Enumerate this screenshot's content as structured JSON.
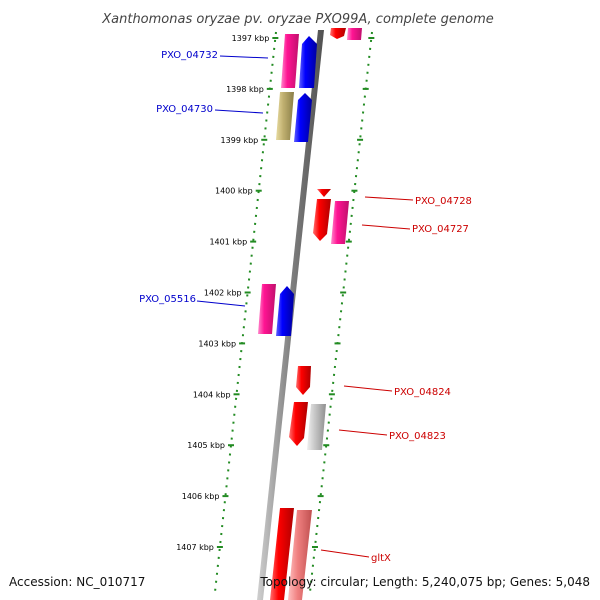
{
  "title": "Xanthomonas oryzae pv. oryzae PXO99A, complete genome",
  "footer": {
    "accession": "Accession: NC_010717",
    "topology": "Topology: circular; Length: 5,240,075 bp; Genes: 5,048"
  },
  "ticks": [
    {
      "label": "1397 kbp"
    },
    {
      "label": "1398 kbp"
    },
    {
      "label": "1399 kbp"
    },
    {
      "label": "1400 kbp"
    },
    {
      "label": "1401 kbp"
    },
    {
      "label": "1402 kbp"
    },
    {
      "label": "1403 kbp"
    },
    {
      "label": "1404 kbp"
    },
    {
      "label": "1405 kbp"
    },
    {
      "label": "1406 kbp"
    },
    {
      "label": "1407 kbp"
    }
  ],
  "gene_labels": [
    {
      "text": "PXO_04732",
      "color": "#0000cc"
    },
    {
      "text": "PXO_04730",
      "color": "#0000cc"
    },
    {
      "text": "PXO_05516",
      "color": "#0000cc"
    },
    {
      "text": "PXO_04728",
      "color": "#cc0000"
    },
    {
      "text": "PXO_04727",
      "color": "#cc0000"
    },
    {
      "text": "PXO_04824",
      "color": "#cc0000"
    },
    {
      "text": "PXO_04823",
      "color": "#cc0000"
    },
    {
      "text": "gltX",
      "color": "#cc0000"
    }
  ],
  "colors": {
    "forward_cds": "#0000ff",
    "reverse_cds": "#ff0000",
    "gene": "#ff1493",
    "other": "#c8c8c8",
    "pseudo": "#c0b070",
    "rna": "#f08080",
    "backbone": "#808080",
    "tick": "#228b22"
  }
}
